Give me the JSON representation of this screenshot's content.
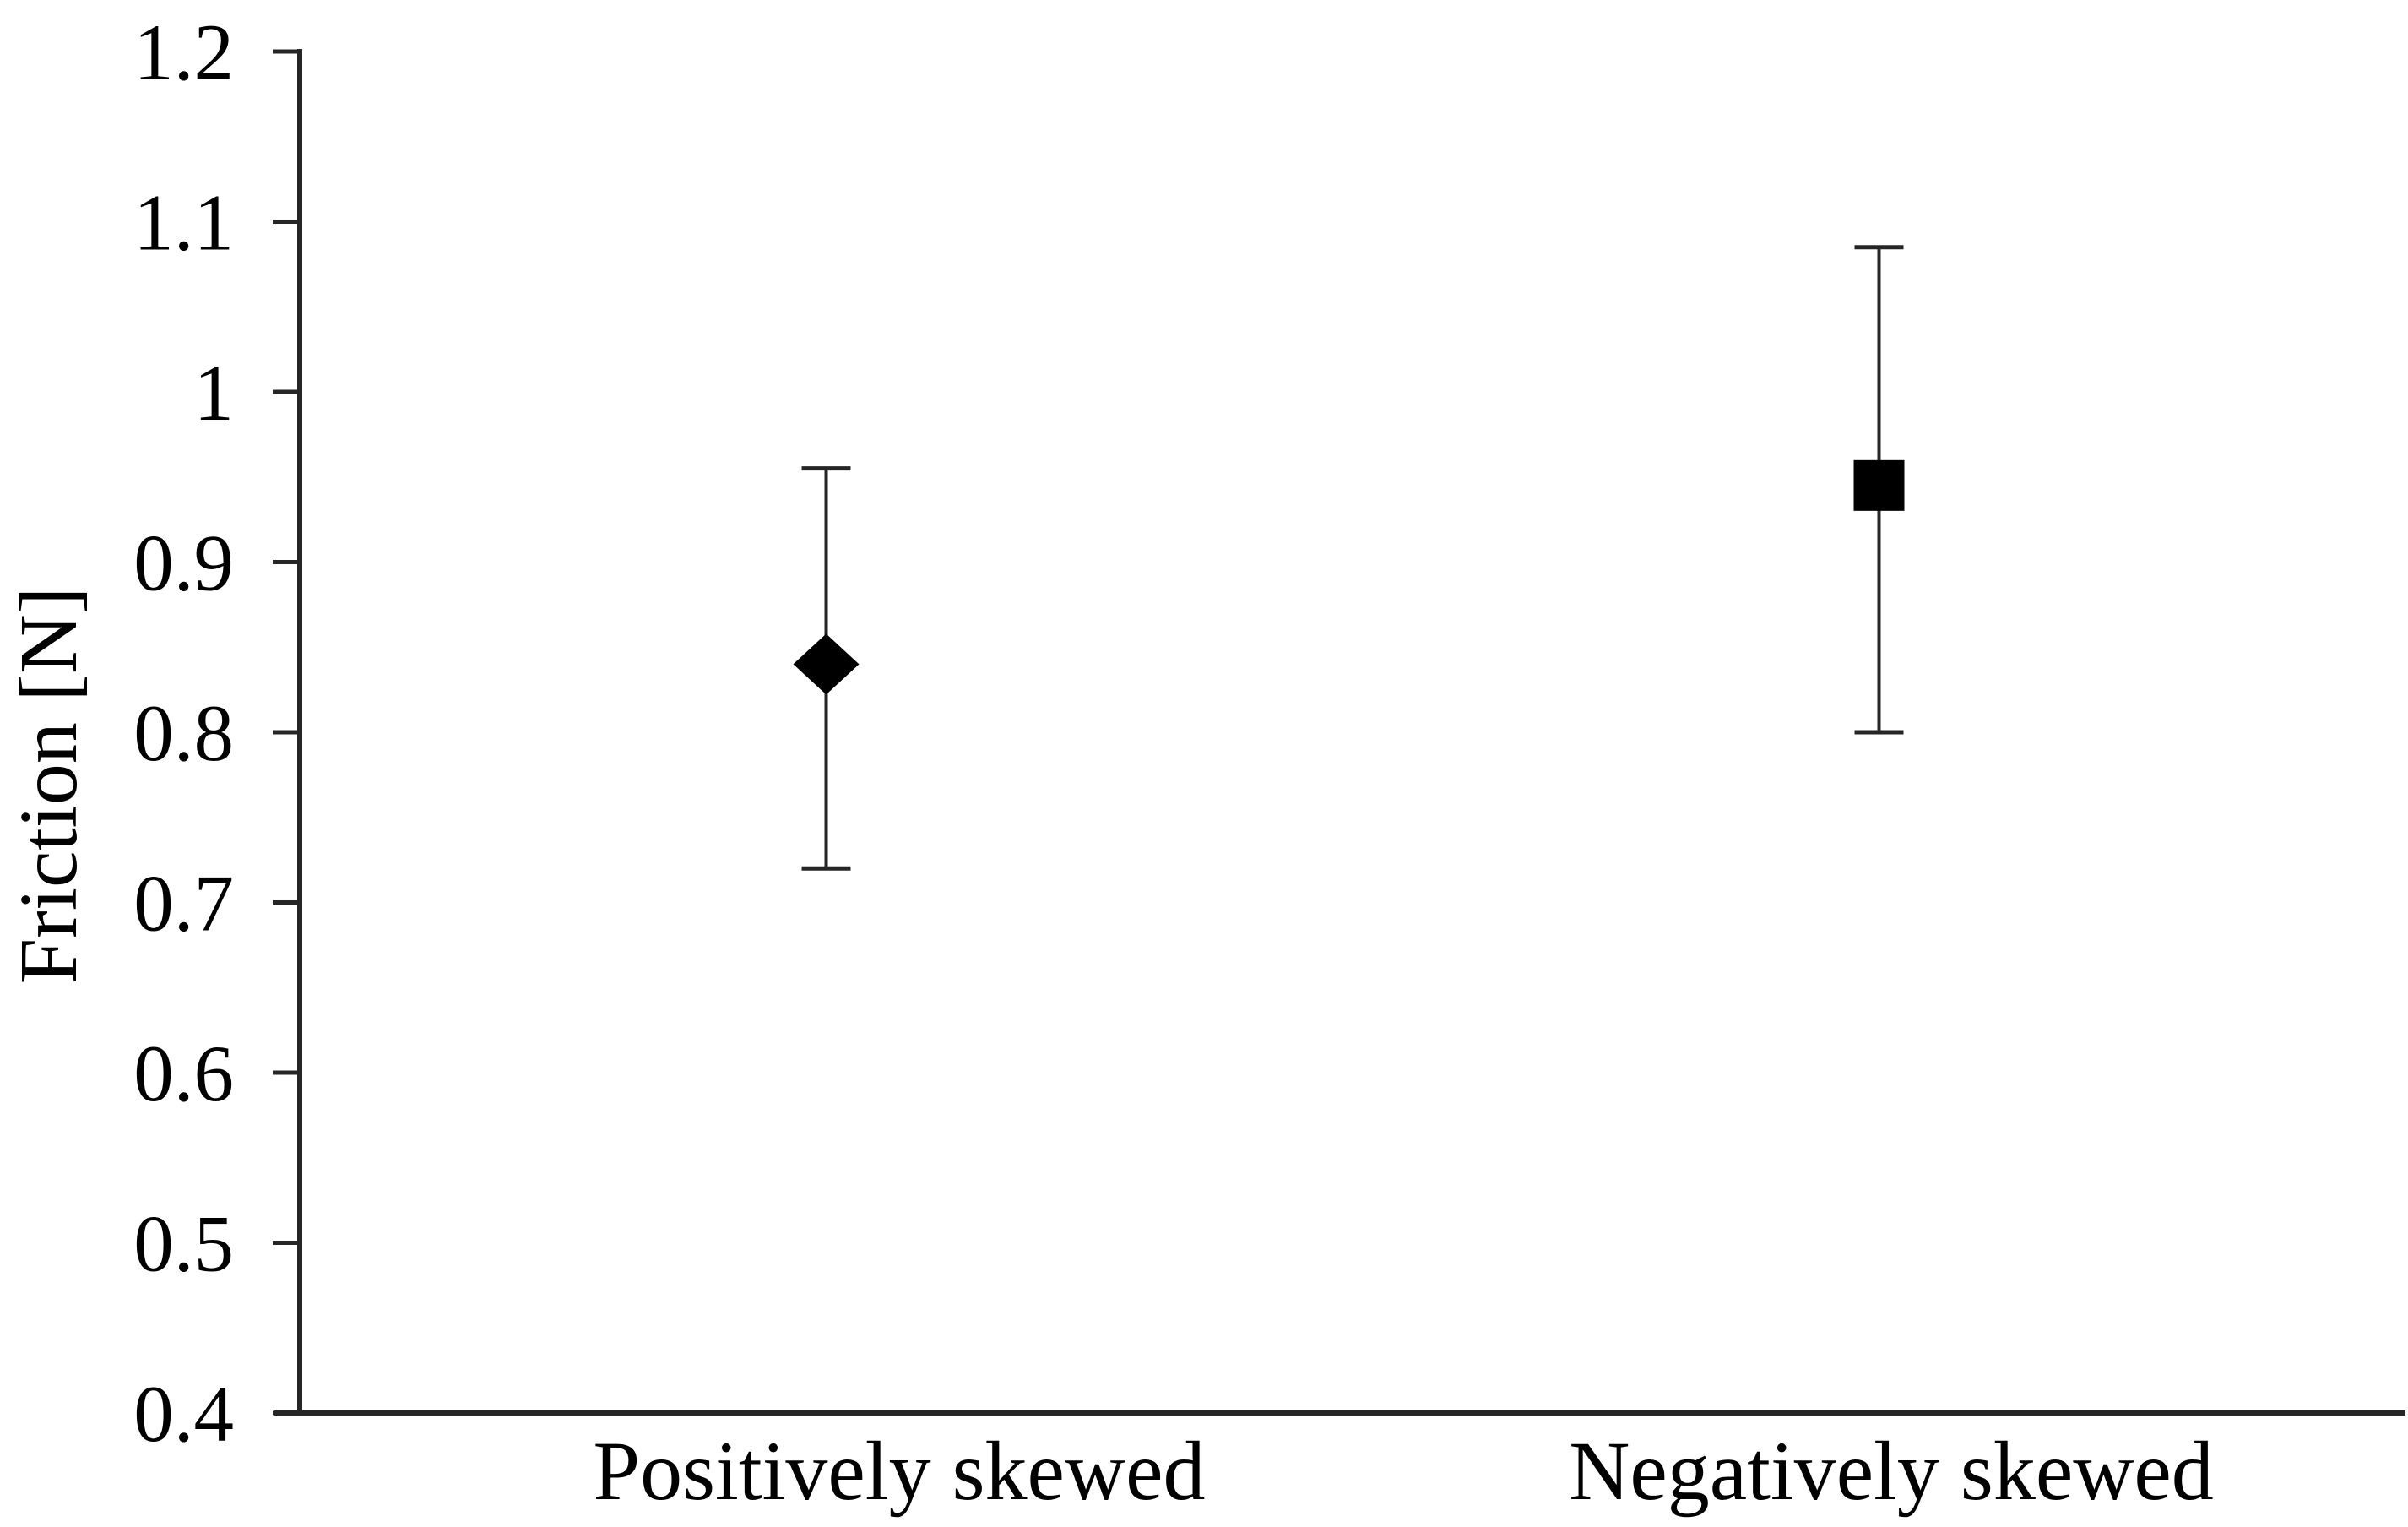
{
  "chart_data": {
    "type": "scatter",
    "title": "",
    "xlabel": "",
    "ylabel": "Friction [N]",
    "ylim": [
      0.4,
      1.2
    ],
    "ytick_values": [
      0.4,
      0.5,
      0.6,
      0.7,
      0.8,
      0.9,
      1.0,
      1.1,
      1.2
    ],
    "ytick_labels": [
      "0.4",
      "0.5",
      "0.6",
      "0.7",
      "0.8",
      "0.9",
      "1",
      "1.1",
      "1.2"
    ],
    "grid": false,
    "legend_position": "none",
    "categories": [
      "Positively skewed",
      "Negatively skewed"
    ],
    "points": [
      {
        "category": "Positively skewed",
        "marker": "diamond",
        "mean": 0.84,
        "upper": 0.955,
        "lower": 0.72
      },
      {
        "category": "Negatively skewed",
        "marker": "square",
        "mean": 0.945,
        "upper": 1.085,
        "lower": 0.8
      }
    ],
    "colors": {
      "marker": "#000000",
      "axis": "#262626",
      "error_bar": "#262626",
      "text": "#000000",
      "background": "#ffffff"
    }
  }
}
